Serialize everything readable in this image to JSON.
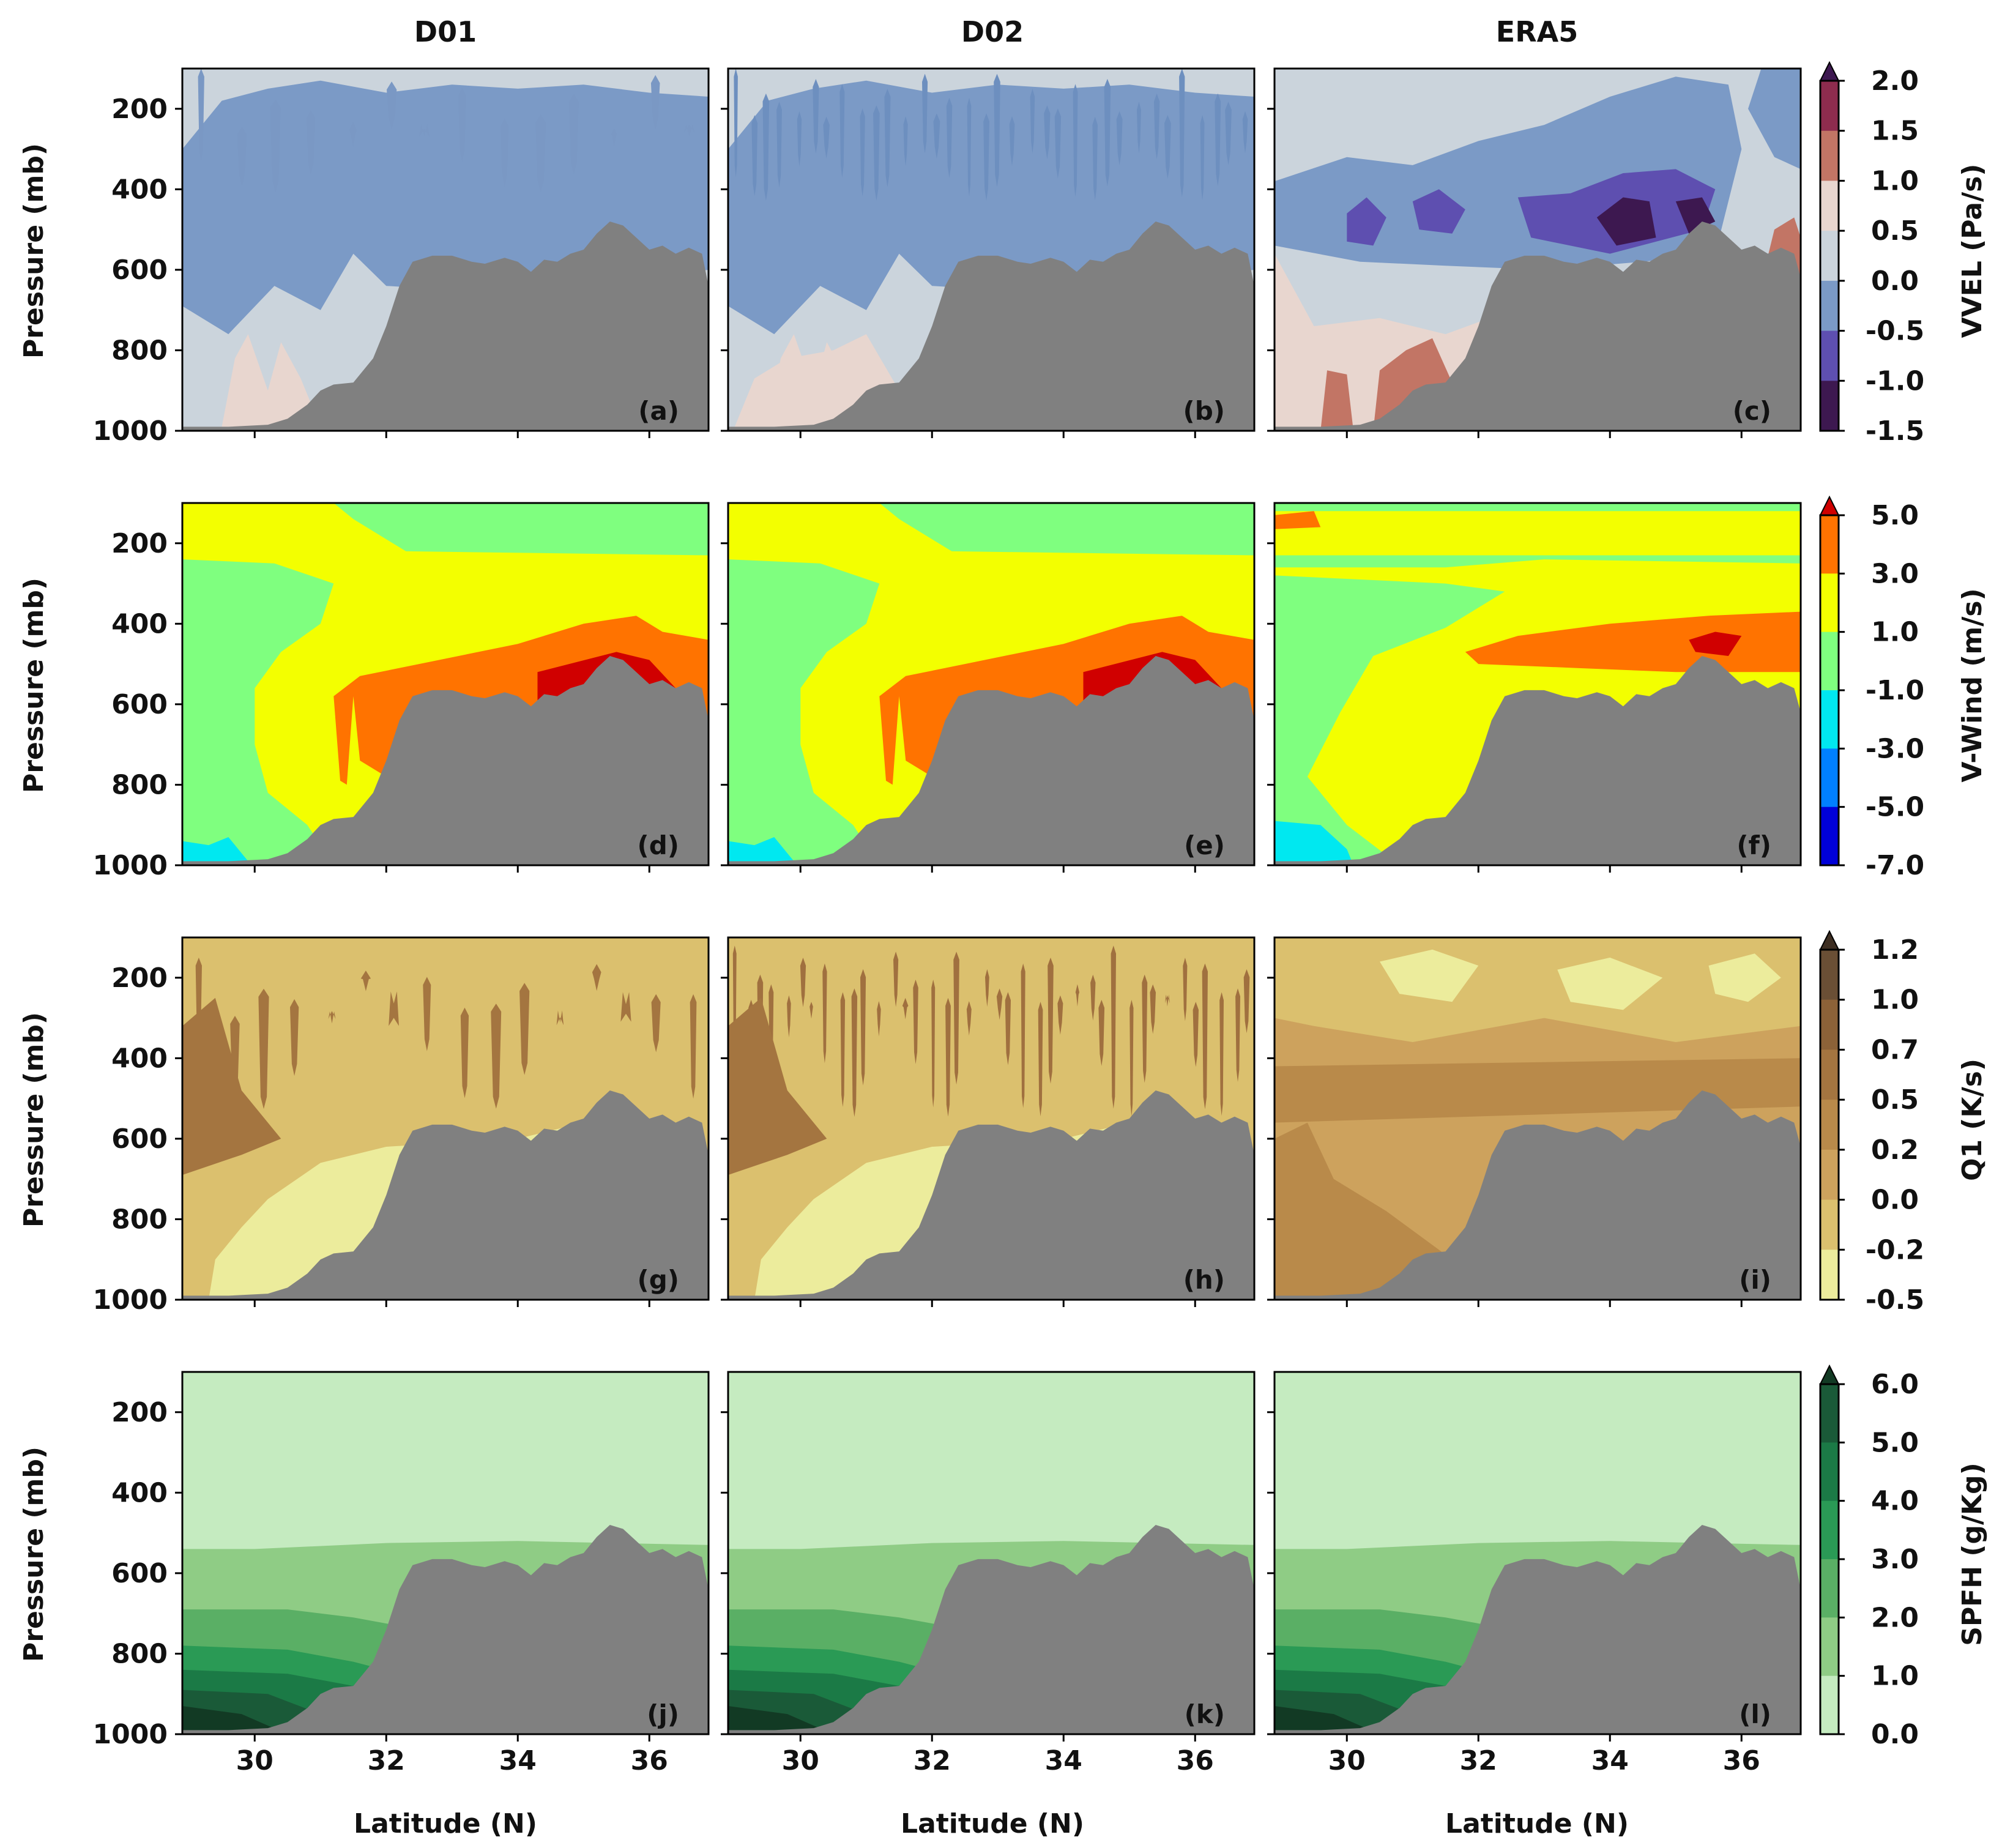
{
  "figure": {
    "column_titles": [
      "D01",
      "D02",
      "ERA5"
    ],
    "xlabel": "Latitude (N)",
    "ylabel": "Pressure (mb)",
    "xticks": [
      "30",
      "32",
      "34",
      "36"
    ],
    "yticks": [
      "200",
      "400",
      "600",
      "800",
      "1000"
    ],
    "terrain_color": "#808080"
  },
  "rows": [
    {
      "panels": [
        "(a)",
        "(b)",
        "(c)"
      ]
    },
    {
      "panels": [
        "(d)",
        "(e)",
        "(f)"
      ]
    },
    {
      "panels": [
        "(g)",
        "(h)",
        "(i)"
      ]
    },
    {
      "panels": [
        "(j)",
        "(k)",
        "(l)"
      ]
    }
  ],
  "chart_data": {
    "type": "contour",
    "x": {
      "label": "Latitude (N)",
      "range": [
        28.9,
        36.9
      ],
      "ticks": [
        30,
        32,
        34,
        36
      ]
    },
    "y": {
      "label": "Pressure (mb)",
      "range": [
        1000,
        100
      ],
      "ticks": [
        200,
        400,
        600,
        800,
        1000
      ]
    },
    "terrain_profile": {
      "lat": [
        28.9,
        29.6,
        30.2,
        30.5,
        30.8,
        31.0,
        31.2,
        31.5,
        31.8,
        32.0,
        32.2,
        32.4,
        32.7,
        33.0,
        33.3,
        33.5,
        33.8,
        34.0,
        34.2,
        34.4,
        34.6,
        34.8,
        35.0,
        35.2,
        35.4,
        35.6,
        35.8,
        36.0,
        36.2,
        36.4,
        36.6,
        36.8,
        36.9
      ],
      "pressure": [
        990,
        990,
        985,
        970,
        935,
        900,
        885,
        880,
        820,
        740,
        640,
        580,
        565,
        565,
        580,
        585,
        570,
        580,
        605,
        575,
        580,
        560,
        550,
        510,
        480,
        490,
        520,
        550,
        540,
        560,
        545,
        560,
        640
      ]
    },
    "rows": [
      {
        "variable": "VVEL",
        "colorbar_label": "VVEL (Pa/s)",
        "levels": [
          "2.0",
          "1.5",
          "1.0",
          "0.5",
          "0.0",
          "-0.5",
          "-1.0",
          "-1.5"
        ],
        "colors": [
          "#8e2c4e",
          "#c27565",
          "#e8d6cf",
          "#cbd4dc",
          "#7b9ac6",
          "#5e4fb0",
          "#3d1850"
        ],
        "extend_color": "#3d1850"
      },
      {
        "variable": "V-Wind",
        "colorbar_label": "V-Wind (m/s)",
        "levels": [
          "5.0",
          "3.0",
          "1.0",
          "-1.0",
          "-3.0",
          "-5.0",
          "-7.0"
        ],
        "colors": [
          "#ff7300",
          "#f3ff00",
          "#7fff7f",
          "#00e8f0",
          "#0080ff",
          "#0000d8"
        ],
        "extend_color": "#d00000"
      },
      {
        "variable": "Q1",
        "colorbar_label": "Q1 (K/s)",
        "levels": [
          "1.2",
          "1.0",
          "0.7",
          "0.5",
          "0.2",
          "0.0",
          "-0.2",
          "-0.5"
        ],
        "colors": [
          "#6a4f35",
          "#8c6238",
          "#a47540",
          "#b98a4a",
          "#cda25d",
          "#dbc06e",
          "#ecec9c"
        ],
        "extend_color": "#3d2e22"
      },
      {
        "variable": "SPFH",
        "colorbar_label": "SPFH (g/Kg)",
        "levels": [
          "6.0",
          "5.0",
          "4.0",
          "3.0",
          "2.0",
          "1.0",
          "0.0"
        ],
        "colors": [
          "#1a5a38",
          "#1b7a46",
          "#2a9a55",
          "#5aaf65",
          "#8fcc85",
          "#c5ebc0"
        ],
        "extend_color": "#123a24"
      }
    ]
  }
}
